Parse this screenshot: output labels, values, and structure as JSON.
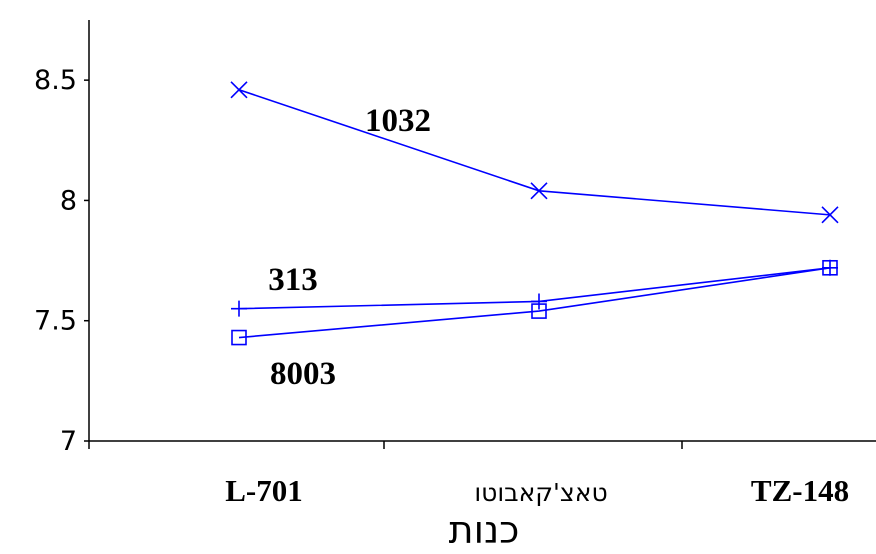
{
  "chart_data": {
    "type": "line",
    "categories": [
      "L-701",
      "טאצ'קאבוטו",
      "TZ-148"
    ],
    "xlabel": "כנות",
    "ylabel": "",
    "ylim": [
      7,
      8.75
    ],
    "yticks": [
      7,
      7.5,
      8,
      8.5
    ],
    "ytick_labels": [
      "7",
      "7.5",
      "8",
      "8.5"
    ],
    "grid": false,
    "line_color": "#0000ff",
    "series": [
      {
        "name": "1032",
        "marker": "x",
        "values": [
          8.46,
          8.04,
          7.94
        ]
      },
      {
        "name": "313",
        "marker": "plus",
        "values": [
          7.55,
          7.58,
          7.72
        ]
      },
      {
        "name": "8003",
        "marker": "square",
        "values": [
          7.43,
          7.54,
          7.72
        ]
      }
    ]
  }
}
